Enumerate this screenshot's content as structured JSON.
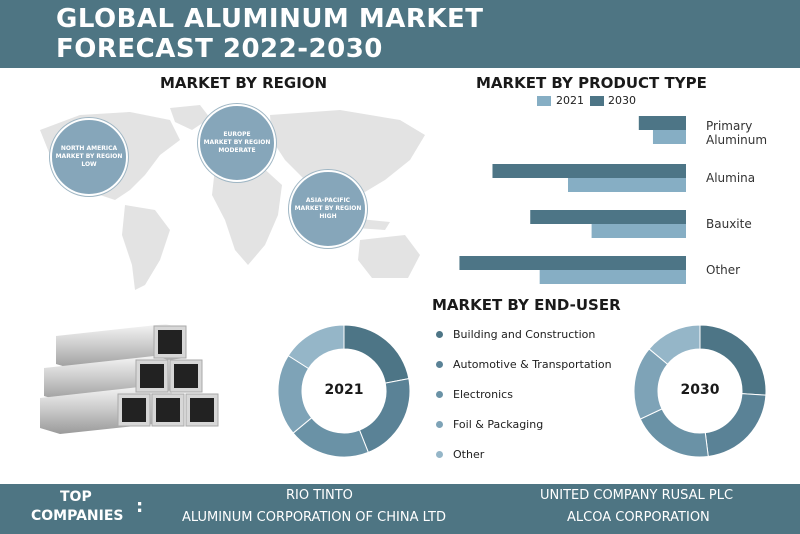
{
  "header": {
    "title_line1": "GLOBAL ALUMINUM MARKET",
    "title_line2": "FORECAST 2022-2030"
  },
  "region": {
    "title": "MARKET BY REGION",
    "bubbles": [
      {
        "line1": "NORTH AMERICA",
        "line2": "MARKET BY REGION",
        "line3": "LOW"
      },
      {
        "line1": "EUROPE",
        "line2": "MARKET BY REGION",
        "line3": "MODERATE"
      },
      {
        "line1": "ASIA-PACIFIC",
        "line2": "MARKET BY REGION",
        "line3": "HIGH"
      }
    ]
  },
  "end_user": {
    "title": "MARKET BY END-USER",
    "items": [
      "Building and Construction",
      "Automotive & Transportation",
      "Electronics",
      "Foil & Packaging",
      "Other"
    ],
    "year_2021": "2021",
    "year_2030": "2030"
  },
  "footer": {
    "label_line1": "TOP",
    "label_line2": "COMPANIES",
    "colon": ":",
    "companies": [
      "RIO TINTO",
      "UNITED COMPANY RUSAL PLC",
      "ALUMINUM CORPORATION OF CHINA LTD",
      "ALCOA CORPORATION"
    ]
  },
  "colors": {
    "header_bg": "#4e7583",
    "series_2021": "#86aec4",
    "series_2030": "#4d7586",
    "map_gray": "#e3e3e3",
    "bubble": "#86a6ba",
    "enduser_colors": [
      "#4d7586",
      "#5a8296",
      "#6a92a6",
      "#7ea3b7",
      "#95b6c8"
    ]
  },
  "chart_data": [
    {
      "type": "bar",
      "orientation": "horizontal",
      "title": "MARKET BY PRODUCT TYPE",
      "categories": [
        "Primary Aluminum",
        "Alumina",
        "Bauxite",
        "Other"
      ],
      "category_lines": [
        [
          "Primary",
          "Aluminum"
        ],
        [
          "Alumina"
        ],
        [
          "Bauxite"
        ],
        [
          "Other"
        ]
      ],
      "series": [
        {
          "name": "2021",
          "values": [
            14,
            50,
            40,
            62
          ]
        },
        {
          "name": "2030",
          "values": [
            20,
            82,
            66,
            96
          ]
        }
      ],
      "xlim": [
        0,
        100
      ],
      "legend": "top"
    },
    {
      "type": "pie",
      "style": "donut",
      "label": "2021",
      "categories": [
        "Building and Construction",
        "Automotive & Transportation",
        "Electronics",
        "Foil & Packaging",
        "Other"
      ],
      "values": [
        22,
        22,
        20,
        20,
        16
      ]
    },
    {
      "type": "pie",
      "style": "donut",
      "label": "2030",
      "categories": [
        "Building and Construction",
        "Automotive & Transportation",
        "Electronics",
        "Foil & Packaging",
        "Other"
      ],
      "values": [
        26,
        22,
        20,
        18,
        14
      ]
    }
  ]
}
